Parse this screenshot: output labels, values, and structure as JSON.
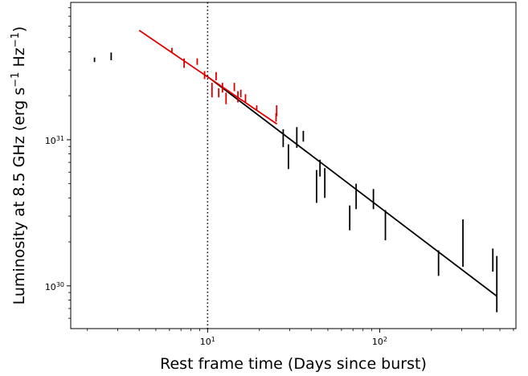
{
  "chart_data": {
    "type": "scatter",
    "xlabel": "Rest frame time (Days since burst)",
    "ylabel_main": "Luminosity at 8.5 GHz (erg s",
    "ylabel_sup1": "−1",
    "ylabel_mid": " Hz",
    "ylabel_sup2": "−1",
    "ylabel_end": ")",
    "x_scale": "log",
    "y_scale": "log",
    "xlim": [
      1.6,
      620
    ],
    "ylim": [
      5.1e+29,
      8.7e+31
    ],
    "x_ticks": [
      {
        "value": 10,
        "base": "10",
        "exp": "1"
      },
      {
        "value": 100,
        "base": "10",
        "exp": "2"
      }
    ],
    "y_ticks": [
      {
        "value": 1e+30,
        "base": "10",
        "exp": "30"
      },
      {
        "value": 1e+31,
        "base": "10",
        "exp": "31"
      }
    ],
    "vline": {
      "x": 10,
      "style": "dotted",
      "color": "#000000"
    },
    "series": [
      {
        "color": "#000000",
        "points": [
          {
            "x": 2.2,
            "ylo": 3.4e+31,
            "yhi": 3.65e+31
          },
          {
            "x": 2.75,
            "ylo": 3.5e+31,
            "yhi": 3.95e+31
          },
          {
            "x": 27.5,
            "ylo": 8.9e+30,
            "yhi": 1.18e+31
          },
          {
            "x": 29.5,
            "ylo": 6.3e+30,
            "yhi": 9.3e+30
          },
          {
            "x": 33.0,
            "ylo": 8.8e+30,
            "yhi": 1.22e+31
          },
          {
            "x": 36.0,
            "ylo": 9.7e+30,
            "yhi": 1.15e+31
          },
          {
            "x": 43.0,
            "ylo": 3.7e+30,
            "yhi": 6.2e+30
          },
          {
            "x": 45.0,
            "ylo": 5.6e+30,
            "yhi": 7.3e+30
          },
          {
            "x": 48.0,
            "ylo": 4e+30,
            "yhi": 6.4e+30
          },
          {
            "x": 67.0,
            "ylo": 2.4e+30,
            "yhi": 3.55e+30
          },
          {
            "x": 73.0,
            "ylo": 3.35e+30,
            "yhi": 5e+30
          },
          {
            "x": 92.0,
            "ylo": 3.35e+30,
            "yhi": 4.6e+30
          },
          {
            "x": 108.0,
            "ylo": 2.05e+30,
            "yhi": 3.3e+30
          },
          {
            "x": 220.0,
            "ylo": 1.17e+30,
            "yhi": 1.75e+30
          },
          {
            "x": 305.0,
            "ylo": 1.35e+30,
            "yhi": 2.85e+30
          },
          {
            "x": 455.0,
            "ylo": 1.25e+30,
            "yhi": 1.8e+30
          },
          {
            "x": 480.0,
            "ylo": 6.6e+29,
            "yhi": 1.6e+30
          }
        ],
        "fit": {
          "x": [
            10,
            480
          ],
          "y": [
            2.7e+31,
            8.5e+29
          ]
        }
      },
      {
        "color": "#dd0000",
        "points": [
          {
            "x": 6.2,
            "ylo": 3.95e+31,
            "yhi": 4.25e+31
          },
          {
            "x": 7.3,
            "ylo": 3.1e+31,
            "yhi": 3.6e+31
          },
          {
            "x": 8.7,
            "ylo": 3.25e+31,
            "yhi": 3.6e+31
          },
          {
            "x": 9.6,
            "ylo": 2.6e+31,
            "yhi": 2.95e+31
          },
          {
            "x": 10.6,
            "ylo": 1.95e+31,
            "yhi": 2.45e+31
          },
          {
            "x": 11.2,
            "ylo": 2.55e+31,
            "yhi": 2.9e+31
          },
          {
            "x": 11.6,
            "ylo": 1.95e+31,
            "yhi": 2.25e+31
          },
          {
            "x": 12.2,
            "ylo": 2.1e+31,
            "yhi": 2.45e+31
          },
          {
            "x": 12.8,
            "ylo": 1.75e+31,
            "yhi": 2.1e+31
          },
          {
            "x": 14.3,
            "ylo": 2.15e+31,
            "yhi": 2.45e+31
          },
          {
            "x": 15.0,
            "ylo": 1.8e+31,
            "yhi": 2.15e+31
          },
          {
            "x": 15.6,
            "ylo": 1.95e+31,
            "yhi": 2.2e+31
          },
          {
            "x": 16.6,
            "ylo": 1.8e+31,
            "yhi": 2.05e+31
          },
          {
            "x": 19.3,
            "ylo": 1.58e+31,
            "yhi": 1.72e+31
          },
          {
            "x": 25.0,
            "ylo": 1.33e+31,
            "yhi": 1.52e+31
          },
          {
            "x": 25.2,
            "ylo": 1.45e+31,
            "yhi": 1.72e+31
          }
        ],
        "fit": {
          "x": [
            4.0,
            25.3
          ],
          "y": [
            5.6e+31,
            1.28e+31
          ]
        }
      }
    ]
  }
}
